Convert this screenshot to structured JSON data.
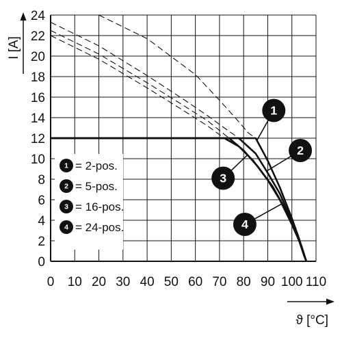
{
  "chart_data": {
    "type": "line",
    "xlabel": "ϑ [°C]",
    "ylabel": "I [A]",
    "xlim": [
      0,
      110
    ],
    "ylim": [
      0,
      24
    ],
    "x_ticks": [
      "0",
      "10",
      "20",
      "30",
      "40",
      "50",
      "60",
      "70",
      "80",
      "90",
      "100",
      "110"
    ],
    "y_ticks": [
      "0",
      "2",
      "4",
      "6",
      "8",
      "10",
      "12",
      "14",
      "16",
      "18",
      "20",
      "22",
      "24"
    ],
    "grid": true,
    "legend": [
      {
        "id": "1",
        "label": "= 2-pos."
      },
      {
        "id": "2",
        "label": "= 5-pos."
      },
      {
        "id": "3",
        "label": "= 16-pos."
      },
      {
        "id": "4",
        "label": "= 24-pos."
      }
    ],
    "series": [
      {
        "id": "1",
        "style": "solid",
        "x": [
          0,
          85,
          90,
          95,
          100,
          103,
          105,
          106
        ],
        "y": [
          12,
          12,
          9.8,
          7.2,
          4.2,
          2.2,
          0.6,
          0
        ]
      },
      {
        "id": "2",
        "style": "solid",
        "x": [
          0,
          78,
          85,
          90,
          95,
          100,
          103,
          105,
          106
        ],
        "y": [
          12,
          12,
          10.5,
          8.6,
          6.6,
          3.9,
          2,
          0.6,
          0
        ]
      },
      {
        "id": "3",
        "style": "solid",
        "x": [
          0,
          72,
          78,
          84,
          90,
          95,
          100,
          103,
          105,
          106
        ],
        "y": [
          12,
          12,
          11.2,
          9.8,
          7.9,
          6,
          3.6,
          2,
          0.6,
          0
        ]
      },
      {
        "id": "4",
        "style": "solid",
        "x": [
          0,
          74,
          80,
          86,
          92,
          97,
          101,
          104,
          106
        ],
        "y": [
          12,
          12,
          10.8,
          9.2,
          7.3,
          5.2,
          3.2,
          1.5,
          0
        ]
      },
      {
        "id": "1",
        "style": "dashed",
        "x": [
          20,
          40,
          60,
          70,
          78,
          82,
          85
        ],
        "y": [
          24,
          21.7,
          18.2,
          15.7,
          13.6,
          12.5,
          12
        ]
      },
      {
        "id": "2",
        "style": "dashed",
        "x": [
          0,
          20,
          40,
          55,
          65,
          72,
          78
        ],
        "y": [
          23.3,
          21,
          18.1,
          15.8,
          14.2,
          13,
          12
        ]
      },
      {
        "id": "3",
        "style": "dashed",
        "x": [
          0,
          20,
          40,
          55,
          65,
          72
        ],
        "y": [
          22,
          19.7,
          16.9,
          14.7,
          13.2,
          12
        ]
      },
      {
        "id": "4",
        "style": "dashed",
        "x": [
          0,
          20,
          40,
          55,
          65,
          74
        ],
        "y": [
          22.5,
          20.2,
          17.4,
          15.2,
          13.7,
          12
        ]
      }
    ],
    "callouts": [
      {
        "id": "1",
        "x": 92.5,
        "y": 14.7
      },
      {
        "id": "2",
        "x": 103.5,
        "y": 10.8
      },
      {
        "id": "3",
        "x": 71.5,
        "y": 8.1
      },
      {
        "id": "4",
        "x": 80.5,
        "y": 3.6
      }
    ]
  }
}
